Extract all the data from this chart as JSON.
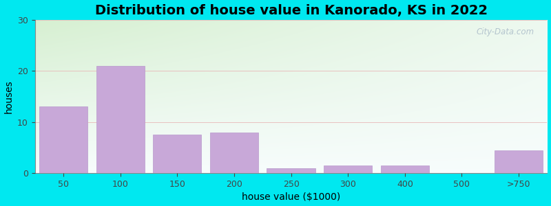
{
  "title": "Distribution of house value in Kanorado, KS in 2022",
  "xlabel": "house value ($1000)",
  "ylabel": "houses",
  "categories": [
    "50",
    "100",
    "150",
    "200",
    "250",
    "300",
    "400",
    "500",
    ">750"
  ],
  "values": [
    13,
    21,
    7.5,
    8,
    1,
    1.5,
    1.5,
    0,
    4.5
  ],
  "bar_color": "#c8a8d8",
  "bar_edgecolor": "#b898cc",
  "ylim": [
    0,
    30
  ],
  "yticks": [
    0,
    10,
    20,
    30
  ],
  "background_outer": "#00e8f0",
  "title_fontsize": 14,
  "axis_label_fontsize": 10,
  "tick_fontsize": 9,
  "watermark_text": "City-Data.com"
}
